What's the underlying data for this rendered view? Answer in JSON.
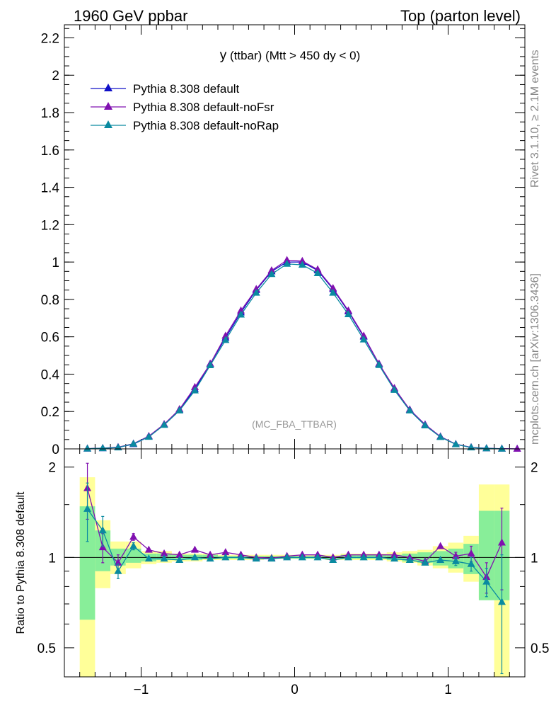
{
  "header": {
    "left": "1960 GeV ppbar",
    "right": "Top (parton level)"
  },
  "side_labels": {
    "rivet": "Rivet 3.1.10, ≥ 2.1M events",
    "mcplots": "mcplots.cern.ch [arXiv:1306.3436]"
  },
  "chart_data": {
    "type": "line",
    "title_main": "y",
    "title_rest": " (ttbar) (Mtt > 450 dy < 0)",
    "watermark": "(MC_FBA_TTBAR)",
    "xlim": [
      -1.5,
      1.5
    ],
    "main_panel": {
      "ylim": [
        0,
        2.27
      ],
      "yticks": [
        "0",
        "0.2",
        "0.4",
        "0.6",
        "0.8",
        "1",
        "1.2",
        "1.4",
        "1.6",
        "1.8",
        "2",
        "2.2"
      ],
      "series": [
        {
          "name": "Pythia 8.308 default",
          "color": "#1010c8",
          "x": [
            -1.35,
            -1.25,
            -1.15,
            -1.05,
            -0.95,
            -0.85,
            -0.75,
            -0.65,
            -0.55,
            -0.45,
            -0.35,
            -0.25,
            -0.15,
            -0.05,
            0.05,
            0.15,
            0.25,
            0.35,
            0.45,
            0.55,
            0.65,
            0.75,
            0.85,
            0.95,
            1.05,
            1.15,
            1.25,
            1.35,
            1.45
          ],
          "y": [
            0.001,
            0.003,
            0.008,
            0.025,
            0.065,
            0.13,
            0.21,
            0.32,
            0.455,
            0.595,
            0.73,
            0.85,
            0.95,
            1.0,
            1.0,
            0.955,
            0.855,
            0.735,
            0.6,
            0.455,
            0.32,
            0.21,
            0.13,
            0.065,
            0.025,
            0.008,
            0.003,
            0.001,
            0.0
          ]
        },
        {
          "name": "Pythia 8.308 default-noFsr",
          "color": "#8010b0",
          "x": [
            -1.35,
            -1.25,
            -1.15,
            -1.05,
            -0.95,
            -0.85,
            -0.75,
            -0.65,
            -0.55,
            -0.45,
            -0.35,
            -0.25,
            -0.15,
            -0.05,
            0.05,
            0.15,
            0.25,
            0.35,
            0.45,
            0.55,
            0.65,
            0.75,
            0.85,
            0.95,
            1.05,
            1.15,
            1.25,
            1.35,
            1.45
          ],
          "y": [
            0.0015,
            0.004,
            0.009,
            0.028,
            0.068,
            0.132,
            0.212,
            0.33,
            0.455,
            0.605,
            0.74,
            0.855,
            0.955,
            1.01,
            1.005,
            0.96,
            0.86,
            0.74,
            0.605,
            0.455,
            0.325,
            0.21,
            0.13,
            0.066,
            0.025,
            0.008,
            0.0025,
            0.001,
            0.0
          ]
        },
        {
          "name": "Pythia 8.308 default-noRap",
          "color": "#0a8aa0",
          "x": [
            -1.35,
            -1.25,
            -1.15,
            -1.05,
            -0.95,
            -0.85,
            -0.75,
            -0.65,
            -0.55,
            -0.45,
            -0.35,
            -0.25,
            -0.15,
            -0.05,
            0.05,
            0.15,
            0.25,
            0.35,
            0.45,
            0.55,
            0.65,
            0.75,
            0.85,
            0.95,
            1.05,
            1.15,
            1.25,
            1.35
          ],
          "y": [
            0.001,
            0.0035,
            0.007,
            0.027,
            0.064,
            0.128,
            0.205,
            0.312,
            0.447,
            0.582,
            0.718,
            0.835,
            0.935,
            0.99,
            0.985,
            0.94,
            0.835,
            0.72,
            0.585,
            0.448,
            0.315,
            0.205,
            0.125,
            0.063,
            0.024,
            0.007,
            0.0025,
            0.0005
          ]
        }
      ]
    },
    "ratio_panel": {
      "ylabel": "Ratio to Pythia 8.308 default",
      "ylim": [
        0.4,
        2.3
      ],
      "yticks": [
        "0.5",
        "1",
        "2"
      ],
      "reference": 1.0,
      "band_x_edges": [
        -1.4,
        -1.3,
        -1.2,
        -1.1,
        -1.0,
        -0.9,
        -0.8,
        -0.7,
        -0.6,
        -0.5,
        -0.4,
        -0.3,
        -0.2,
        -0.1,
        0.0,
        0.1,
        0.2,
        0.3,
        0.4,
        0.5,
        0.6,
        0.7,
        0.8,
        0.9,
        1.0,
        1.1,
        1.2,
        1.3,
        1.4
      ],
      "band_yellow": [
        [
          0.33,
          1.85
        ],
        [
          0.79,
          1.33
        ],
        [
          0.88,
          1.13
        ],
        [
          0.92,
          1.13
        ],
        [
          0.95,
          1.05
        ],
        [
          0.96,
          1.05
        ],
        [
          0.97,
          1.03
        ],
        [
          0.97,
          1.03
        ],
        [
          0.98,
          1.03
        ],
        [
          0.98,
          1.02
        ],
        [
          0.98,
          1.02
        ],
        [
          0.98,
          1.02
        ],
        [
          0.99,
          1.02
        ],
        [
          0.99,
          1.02
        ],
        [
          0.99,
          1.02
        ],
        [
          0.99,
          1.02
        ],
        [
          0.98,
          1.02
        ],
        [
          0.98,
          1.03
        ],
        [
          0.98,
          1.03
        ],
        [
          0.98,
          1.03
        ],
        [
          0.97,
          1.04
        ],
        [
          0.96,
          1.05
        ],
        [
          0.94,
          1.06
        ],
        [
          0.92,
          1.09
        ],
        [
          0.89,
          1.12
        ],
        [
          0.83,
          1.18
        ],
        [
          0.73,
          1.75
        ],
        [
          0.33,
          1.75
        ]
      ],
      "band_green": [
        [
          0.62,
          1.48
        ],
        [
          0.9,
          1.23
        ],
        [
          0.94,
          1.07
        ],
        [
          0.96,
          1.07
        ],
        [
          0.97,
          1.03
        ],
        [
          0.98,
          1.03
        ],
        [
          0.98,
          1.02
        ],
        [
          0.98,
          1.02
        ],
        [
          0.99,
          1.02
        ],
        [
          0.99,
          1.01
        ],
        [
          0.99,
          1.01
        ],
        [
          0.99,
          1.01
        ],
        [
          0.99,
          1.01
        ],
        [
          0.99,
          1.01
        ],
        [
          0.99,
          1.01
        ],
        [
          0.99,
          1.01
        ],
        [
          0.99,
          1.01
        ],
        [
          0.99,
          1.02
        ],
        [
          0.99,
          1.02
        ],
        [
          0.99,
          1.02
        ],
        [
          0.98,
          1.02
        ],
        [
          0.97,
          1.03
        ],
        [
          0.96,
          1.04
        ],
        [
          0.94,
          1.05
        ],
        [
          0.92,
          1.07
        ],
        [
          0.88,
          1.11
        ],
        [
          0.72,
          1.43
        ],
        [
          0.72,
          1.43
        ]
      ],
      "series": [
        {
          "name": "Pythia 8.308 default-noFsr",
          "color": "#8010b0",
          "x": [
            -1.35,
            -1.25,
            -1.15,
            -1.05,
            -0.95,
            -0.85,
            -0.75,
            -0.65,
            -0.55,
            -0.45,
            -0.35,
            -0.25,
            -0.15,
            -0.05,
            0.05,
            0.15,
            0.25,
            0.35,
            0.45,
            0.55,
            0.65,
            0.75,
            0.85,
            0.95,
            1.05,
            1.15,
            1.25,
            1.35
          ],
          "y": [
            1.7,
            1.08,
            0.96,
            1.17,
            1.06,
            1.03,
            1.02,
            1.06,
            1.02,
            1.04,
            1.02,
            1.0,
            0.995,
            1.01,
            1.02,
            1.02,
            1.0,
            1.02,
            1.02,
            1.02,
            1.02,
            1.0,
            0.97,
            1.09,
            1.01,
            1.03,
            0.86,
            1.12
          ],
          "err": [
            0.36,
            0.12,
            0.06,
            0.03,
            0.02,
            0.01,
            0.01,
            0.01,
            0.01,
            0.01,
            0.01,
            0.01,
            0.01,
            0.01,
            0.01,
            0.01,
            0.01,
            0.01,
            0.01,
            0.01,
            0.01,
            0.01,
            0.02,
            0.02,
            0.03,
            0.06,
            0.1,
            0.34
          ]
        },
        {
          "name": "Pythia 8.308 default-noRap",
          "color": "#0a8aa0",
          "x": [
            -1.35,
            -1.25,
            -1.15,
            -1.05,
            -0.95,
            -0.85,
            -0.75,
            -0.65,
            -0.55,
            -0.45,
            -0.35,
            -0.25,
            -0.15,
            -0.05,
            0.05,
            0.15,
            0.25,
            0.35,
            0.45,
            0.55,
            0.65,
            0.75,
            0.85,
            0.95,
            1.05,
            1.15,
            1.25,
            1.35
          ],
          "y": [
            1.45,
            1.23,
            0.9,
            1.09,
            0.99,
            0.99,
            0.98,
            1.0,
            0.99,
            1.0,
            1.0,
            0.99,
            0.99,
            1.0,
            1.0,
            1.0,
            0.98,
            1.0,
            1.0,
            1.0,
            0.99,
            0.98,
            0.96,
            0.98,
            0.97,
            0.95,
            0.83,
            0.71
          ],
          "err": [
            0.32,
            0.14,
            0.05,
            0.03,
            0.02,
            0.01,
            0.01,
            0.01,
            0.01,
            0.01,
            0.01,
            0.01,
            0.01,
            0.01,
            0.01,
            0.01,
            0.01,
            0.01,
            0.01,
            0.01,
            0.01,
            0.01,
            0.02,
            0.02,
            0.03,
            0.05,
            0.09,
            0.31
          ]
        }
      ]
    },
    "xticks": [
      "−1",
      "0",
      "1"
    ],
    "xtick_values": [
      -1,
      0,
      1
    ]
  }
}
